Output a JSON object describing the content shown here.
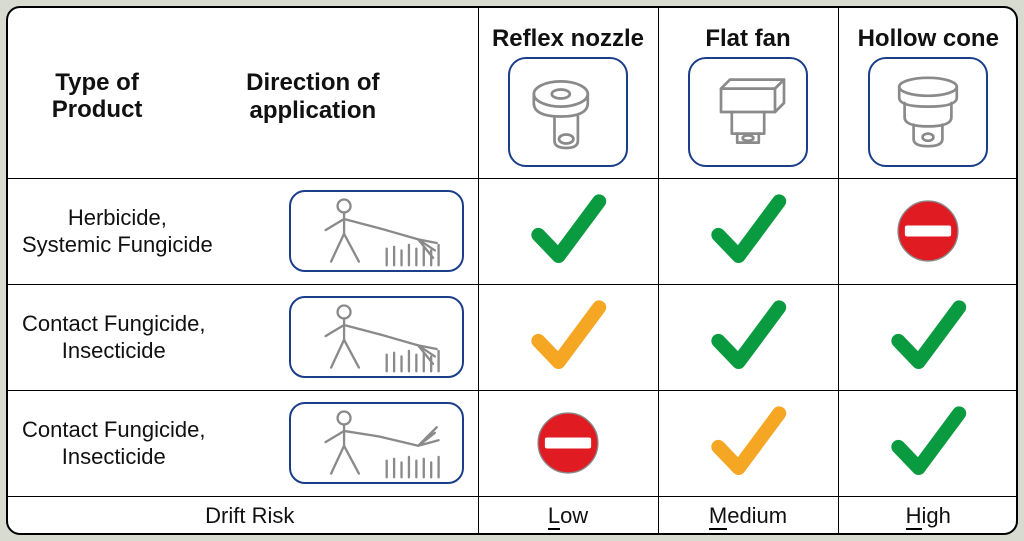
{
  "colors": {
    "page_bg": "#d8dbd0",
    "panel_bg": "#ffffff",
    "border": "#000000",
    "box_border": "#1a3e8a",
    "text": "#111111",
    "check_green": "#0a9a3f",
    "check_orange": "#f5a623",
    "no_red": "#e11b22",
    "no_white": "#ffffff",
    "sketch_gray": "#8a8a8a"
  },
  "layout": {
    "frame_w": 1012,
    "frame_h": 529,
    "frame_radius": 14,
    "col_product_w": 470,
    "col_nozzle_w": 180,
    "row_header_h": 170,
    "row_body_h": 106,
    "row_footer_h": 40,
    "icon_box_w": 120,
    "icon_box_h": 110,
    "icon_box_radius": 18,
    "dir_box_w": 175,
    "dir_box_h": 82,
    "dir_box_radius": 16,
    "check_w": 78,
    "check_h": 88,
    "no_d": 68,
    "font_header": 24,
    "font_body": 22
  },
  "header": {
    "product_type": "Type of\nProduct",
    "direction": "Direction of application",
    "columns": [
      "Reflex nozzle",
      "Flat fan",
      "Hollow cone"
    ]
  },
  "rows": [
    {
      "label": "Herbicide,\nSystemic Fungicide",
      "direction_icon": "sprayer-side",
      "marks": [
        "check-green",
        "check-green",
        "no-entry"
      ]
    },
    {
      "label": "Contact Fungicide,\nInsecticide",
      "direction_icon": "sprayer-side",
      "marks": [
        "check-orange",
        "check-green",
        "check-green"
      ]
    },
    {
      "label": "Contact Fungicide,\nInsecticide",
      "direction_icon": "sprayer-under",
      "marks": [
        "no-entry",
        "check-orange",
        "check-green"
      ]
    }
  ],
  "footer": {
    "label": "Drift Risk",
    "values": [
      "Low",
      "Medium",
      "High"
    ]
  }
}
